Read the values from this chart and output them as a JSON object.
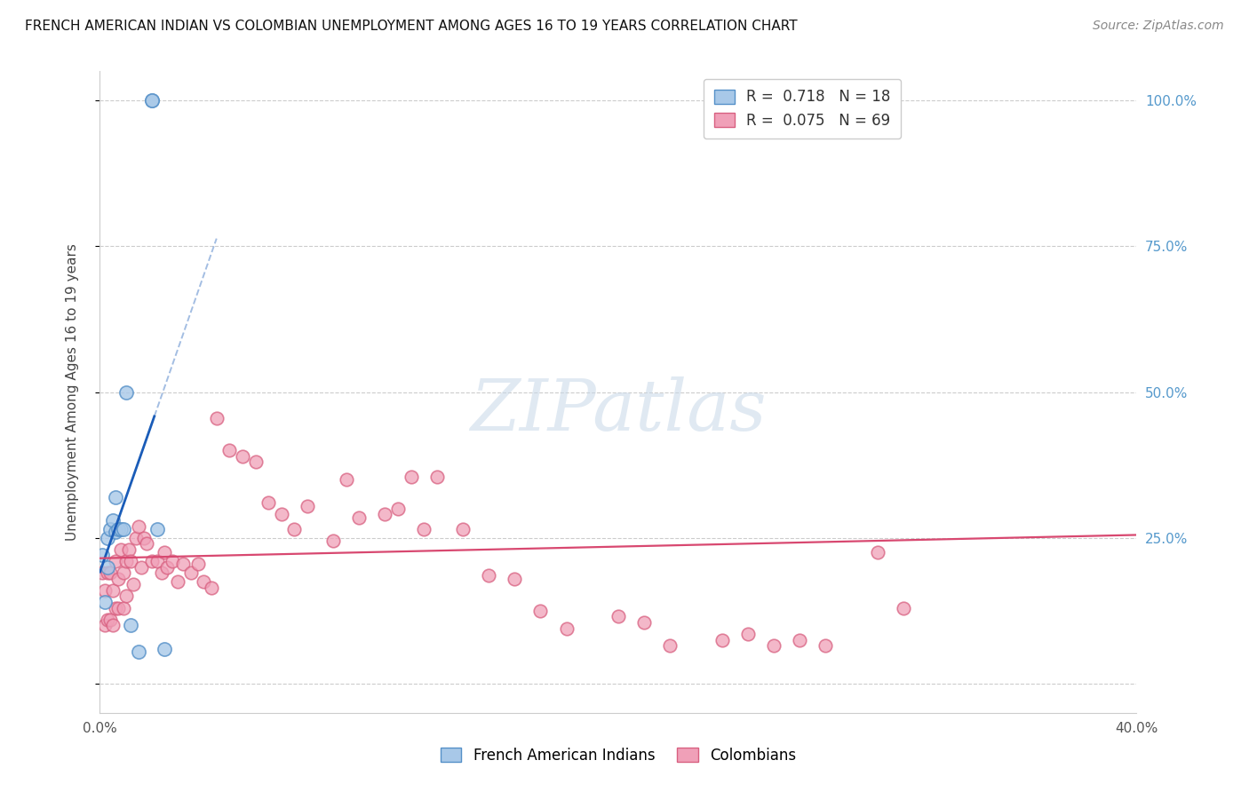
{
  "title": "FRENCH AMERICAN INDIAN VS COLOMBIAN UNEMPLOYMENT AMONG AGES 16 TO 19 YEARS CORRELATION CHART",
  "source": "Source: ZipAtlas.com",
  "ylabel": "Unemployment Among Ages 16 to 19 years",
  "xlim": [
    0.0,
    0.4
  ],
  "ylim": [
    -0.05,
    1.05
  ],
  "x_ticks": [
    0.0,
    0.4
  ],
  "x_tick_labels": [
    "0.0%",
    "40.0%"
  ],
  "y_ticks": [
    0.0,
    0.25,
    0.5,
    0.75,
    1.0
  ],
  "y_tick_labels": [
    "",
    "25.0%",
    "50.0%",
    "75.0%",
    "100.0%"
  ],
  "R_blue": "0.718",
  "N_blue": "18",
  "R_pink": "0.075",
  "N_pink": "69",
  "color_blue_fill": "#a8c8e8",
  "color_blue_edge": "#5590c8",
  "color_pink_fill": "#f0a0b8",
  "color_pink_edge": "#d86080",
  "line_blue": "#1a5cb8",
  "line_pink": "#d84870",
  "watermark_color": "#c8d8e8",
  "tick_color": "#5599cc",
  "title_color": "#111111",
  "source_color": "#888888",
  "french_x": [
    0.001,
    0.002,
    0.003,
    0.003,
    0.004,
    0.005,
    0.006,
    0.006,
    0.007,
    0.008,
    0.009,
    0.01,
    0.012,
    0.015,
    0.02,
    0.02,
    0.022,
    0.025
  ],
  "french_y": [
    0.22,
    0.14,
    0.2,
    0.25,
    0.265,
    0.28,
    0.26,
    0.32,
    0.265,
    0.265,
    0.265,
    0.5,
    0.1,
    0.055,
    1.0,
    1.0,
    0.265,
    0.06
  ],
  "colombian_x": [
    0.001,
    0.002,
    0.002,
    0.003,
    0.003,
    0.004,
    0.004,
    0.005,
    0.005,
    0.006,
    0.006,
    0.007,
    0.007,
    0.008,
    0.009,
    0.009,
    0.01,
    0.01,
    0.011,
    0.012,
    0.013,
    0.014,
    0.015,
    0.016,
    0.017,
    0.018,
    0.02,
    0.022,
    0.024,
    0.025,
    0.026,
    0.028,
    0.03,
    0.032,
    0.035,
    0.038,
    0.04,
    0.043,
    0.045,
    0.05,
    0.055,
    0.06,
    0.065,
    0.07,
    0.075,
    0.08,
    0.09,
    0.095,
    0.1,
    0.11,
    0.115,
    0.12,
    0.125,
    0.13,
    0.14,
    0.15,
    0.16,
    0.17,
    0.18,
    0.2,
    0.21,
    0.22,
    0.24,
    0.25,
    0.26,
    0.27,
    0.28,
    0.3,
    0.31
  ],
  "colombian_y": [
    0.19,
    0.16,
    0.1,
    0.19,
    0.11,
    0.19,
    0.11,
    0.16,
    0.1,
    0.21,
    0.13,
    0.18,
    0.13,
    0.23,
    0.19,
    0.13,
    0.21,
    0.15,
    0.23,
    0.21,
    0.17,
    0.25,
    0.27,
    0.2,
    0.25,
    0.24,
    0.21,
    0.21,
    0.19,
    0.225,
    0.2,
    0.21,
    0.175,
    0.205,
    0.19,
    0.205,
    0.175,
    0.165,
    0.455,
    0.4,
    0.39,
    0.38,
    0.31,
    0.29,
    0.265,
    0.305,
    0.245,
    0.35,
    0.285,
    0.29,
    0.3,
    0.355,
    0.265,
    0.355,
    0.265,
    0.185,
    0.18,
    0.125,
    0.095,
    0.115,
    0.105,
    0.065,
    0.075,
    0.085,
    0.065,
    0.075,
    0.065,
    0.225,
    0.13
  ]
}
